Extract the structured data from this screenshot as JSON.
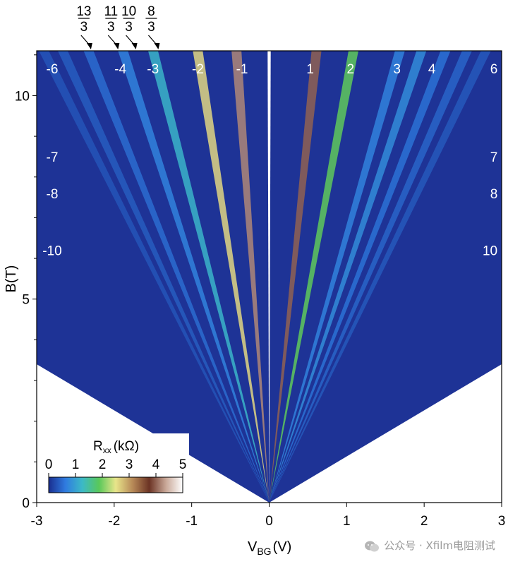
{
  "chart_data": {
    "type": "heatmap",
    "xlabel_main": "V",
    "xlabel_sub": "BG",
    "xlabel_unit": "(V)",
    "ylabel": "B(T)",
    "xlim": [
      -3,
      3
    ],
    "ylim": [
      0,
      11.1
    ],
    "x_ticks": [
      -3,
      -2,
      -1,
      0,
      1,
      2,
      3
    ],
    "x_tick_labels": [
      "-3",
      "-2",
      "-1",
      "0",
      "1",
      "2",
      "3"
    ],
    "y_ticks": [
      0,
      5,
      10
    ],
    "y_tick_labels": [
      "0",
      "5",
      "10"
    ],
    "colorbar": {
      "label": "Rxx (kΩ)",
      "label_main": "R",
      "label_sub": "xx",
      "label_unit": "(kΩ)",
      "range": [
        0,
        5
      ],
      "ticks": [
        "0",
        "1",
        "2",
        "3",
        "4",
        "5"
      ],
      "colors": [
        "#1a2e8f",
        "#2f7be0",
        "#3cb9c7",
        "#59c85a",
        "#e8e58a",
        "#b88a58",
        "#6b3324",
        "#c9a898",
        "#ffffff"
      ]
    },
    "fan_labels_top": [
      {
        "text": "-6",
        "x_at_top": -2.8
      },
      {
        "text": "-4",
        "x_at_top": -1.92
      },
      {
        "text": "-3",
        "x_at_top": -1.5
      },
      {
        "text": "-2",
        "x_at_top": -0.92
      },
      {
        "text": "-1",
        "x_at_top": -0.35
      },
      {
        "text": "1",
        "x_at_top": 0.53
      },
      {
        "text": "2",
        "x_at_top": 1.05
      },
      {
        "text": "3",
        "x_at_top": 1.65
      },
      {
        "text": "4",
        "x_at_top": 2.1
      },
      {
        "text": "6",
        "x_at_top": 2.9
      }
    ],
    "fan_labels_side": [
      {
        "text": "-7",
        "x": -2.8,
        "B": 8.5
      },
      {
        "text": "-8",
        "x": -2.8,
        "B": 7.6
      },
      {
        "text": "-10",
        "x": -2.8,
        "B": 6.2
      },
      {
        "text": "7",
        "x": 2.9,
        "B": 8.5
      },
      {
        "text": "8",
        "x": 2.9,
        "B": 7.6
      },
      {
        "text": "10",
        "x": 2.85,
        "B": 6.2
      }
    ],
    "fractional_markers": [
      {
        "num": "13",
        "den": "3",
        "x": -2.3
      },
      {
        "num": "11",
        "den": "3",
        "x": -1.95
      },
      {
        "num": "10",
        "den": "3",
        "x": -1.72
      },
      {
        "num": "8",
        "den": "3",
        "x": -1.43
      }
    ],
    "fan_lines": [
      {
        "slope_inv": 0.055,
        "level": 4.0
      },
      {
        "slope_inv": 0.098,
        "level": 1.9
      },
      {
        "slope_inv": 0.152,
        "level": 0.7
      },
      {
        "slope_inv": 0.177,
        "level": 0.8
      },
      {
        "slope_inv": 0.205,
        "level": 0.55
      },
      {
        "slope_inv": 0.23,
        "level": 0.45
      },
      {
        "slope_inv": 0.252,
        "level": 0.35
      },
      {
        "slope_inv": -0.038,
        "level": 4.2
      },
      {
        "slope_inv": -0.083,
        "level": 2.6
      },
      {
        "slope_inv": -0.135,
        "level": 1.2
      },
      {
        "slope_inv": -0.17,
        "level": 0.7
      },
      {
        "slope_inv": -0.21,
        "level": 0.5
      },
      {
        "slope_inv": -0.24,
        "level": 0.38
      },
      {
        "slope_inv": -0.262,
        "level": 0.32
      }
    ]
  },
  "watermark": {
    "text": "公众号 · Xfilm电阻测试"
  }
}
